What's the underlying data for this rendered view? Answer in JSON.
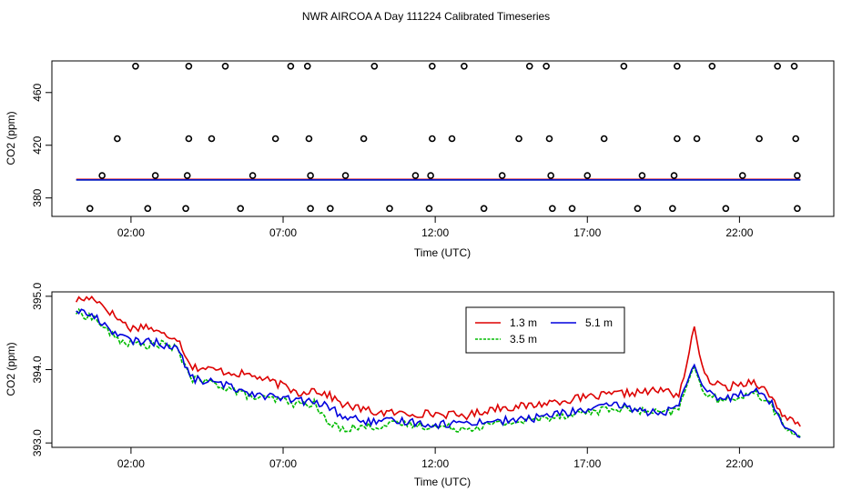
{
  "title": "NWR AIRCOA A  Day 111224  Calibrated Timeseries",
  "chart_data": [
    {
      "type": "scatter",
      "name": "top-panel",
      "xlabel": "Time (UTC)",
      "ylabel": "CO2 (ppm)",
      "xlim": [
        -0.6,
        25.1
      ],
      "ylim": [
        366,
        484
      ],
      "x_tick_values": [
        2,
        7,
        12,
        17,
        22
      ],
      "x_tick_labels": [
        "02:00",
        "07:00",
        "12:00",
        "17:00",
        "22:00"
      ],
      "y_tick_values": [
        380,
        420,
        460
      ],
      "y_tick_labels": [
        "380",
        "420",
        "460"
      ],
      "levels": [
        372,
        397,
        425,
        480
      ],
      "points_x": {
        "480": [
          2.15,
          3.9,
          5.1,
          7.25,
          7.8,
          10.0,
          11.9,
          12.95,
          15.1,
          15.65,
          18.2,
          19.95,
          21.1,
          23.25,
          23.8
        ],
        "425": [
          1.55,
          3.9,
          4.65,
          6.75,
          7.85,
          9.65,
          11.9,
          12.55,
          14.75,
          15.75,
          17.55,
          19.95,
          20.6,
          22.65,
          23.85
        ],
        "397": [
          1.05,
          2.8,
          3.85,
          6.0,
          7.9,
          9.05,
          11.35,
          11.85,
          14.2,
          15.8,
          17.0,
          18.8,
          19.85,
          22.1,
          23.9
        ],
        "372": [
          0.65,
          2.55,
          3.8,
          5.6,
          7.9,
          8.55,
          10.5,
          11.8,
          13.6,
          15.85,
          16.5,
          18.65,
          19.8,
          21.55,
          23.9
        ]
      },
      "series": [
        {
          "name": "1.3 m",
          "color": "#dd0000",
          "mean": 394.1
        },
        {
          "name": "3.5 m",
          "color": "#00bb00",
          "mean": 393.7
        },
        {
          "name": "5.1 m",
          "color": "#0000dd",
          "mean": 393.7
        }
      ]
    },
    {
      "type": "line",
      "name": "bottom-panel",
      "xlabel": "Time (UTC)",
      "ylabel": "CO2 (ppm)",
      "xlim": [
        -0.6,
        25.1
      ],
      "ylim": [
        392.94,
        395.06
      ],
      "x_tick_values": [
        2,
        7,
        12,
        17,
        22
      ],
      "x_tick_labels": [
        "02:00",
        "07:00",
        "12:00",
        "17:00",
        "22:00"
      ],
      "y_tick_values": [
        393.0,
        394.0,
        395.0
      ],
      "y_tick_labels": [
        "393.0",
        "394.0",
        "395.0"
      ],
      "legend": {
        "position": "top-center",
        "entries": [
          "1.3 m",
          "3.5 m",
          "5.1 m"
        ]
      },
      "series": [
        {
          "name": "1.3 m",
          "color": "#dd0000",
          "x": [
            0.2,
            0.8,
            1.5,
            2.0,
            2.5,
            3.0,
            3.5,
            4.0,
            5.0,
            6.0,
            7.0,
            7.5,
            8.0,
            8.5,
            9.0,
            10.0,
            11.0,
            12.0,
            13.0,
            14.0,
            15.0,
            16.0,
            17.0,
            18.0,
            19.0,
            19.5,
            20.0,
            20.3,
            20.5,
            20.8,
            21.0,
            21.5,
            22.0,
            22.5,
            23.0,
            23.5,
            24.0
          ],
          "y": [
            394.95,
            394.98,
            394.72,
            394.56,
            394.6,
            394.48,
            394.45,
            394.04,
            393.98,
            393.92,
            393.78,
            393.68,
            393.73,
            393.65,
            393.52,
            393.42,
            393.4,
            393.4,
            393.37,
            393.48,
            393.5,
            393.57,
            393.62,
            393.67,
            393.7,
            393.72,
            393.65,
            394.12,
            394.62,
            393.95,
            393.85,
            393.75,
            393.8,
            393.85,
            393.65,
            393.35,
            393.22
          ]
        },
        {
          "name": "3.5 m",
          "color": "#00bb00",
          "x": [
            0.2,
            0.8,
            1.5,
            2.0,
            2.5,
            3.0,
            3.5,
            4.0,
            5.0,
            6.0,
            7.0,
            7.5,
            8.0,
            8.5,
            9.0,
            10.0,
            11.0,
            12.0,
            13.0,
            14.0,
            15.0,
            16.0,
            17.0,
            18.0,
            19.0,
            19.5,
            20.0,
            20.3,
            20.5,
            20.8,
            21.0,
            21.5,
            22.0,
            22.5,
            23.0,
            23.5,
            24.0
          ],
          "y": [
            394.78,
            394.7,
            394.42,
            394.35,
            394.33,
            394.35,
            394.28,
            393.88,
            393.78,
            393.62,
            393.58,
            393.52,
            393.55,
            393.25,
            393.2,
            393.23,
            393.26,
            393.22,
            393.2,
            393.26,
            393.3,
            393.37,
            393.42,
            393.47,
            393.42,
            393.4,
            393.45,
            393.82,
            394.05,
            393.72,
            393.65,
            393.55,
            393.65,
            393.68,
            393.55,
            393.2,
            393.1
          ]
        },
        {
          "name": "5.1 m",
          "color": "#0000dd",
          "x": [
            0.2,
            0.8,
            1.5,
            2.0,
            2.5,
            3.0,
            3.5,
            4.0,
            5.0,
            6.0,
            7.0,
            7.5,
            8.0,
            8.5,
            9.0,
            10.0,
            11.0,
            12.0,
            13.0,
            14.0,
            15.0,
            16.0,
            17.0,
            18.0,
            19.0,
            19.5,
            20.0,
            20.3,
            20.5,
            20.8,
            21.0,
            21.5,
            22.0,
            22.5,
            23.0,
            23.5,
            24.0
          ],
          "y": [
            394.82,
            394.72,
            394.5,
            394.38,
            394.4,
            394.35,
            394.3,
            393.88,
            393.8,
            393.68,
            393.6,
            393.58,
            393.55,
            393.5,
            393.35,
            393.28,
            393.3,
            393.25,
            393.28,
            393.3,
            393.32,
            393.4,
            393.45,
            393.52,
            393.42,
            393.42,
            393.48,
            393.85,
            394.08,
            393.75,
            393.68,
            393.58,
            393.68,
            393.72,
            393.58,
            393.23,
            393.12
          ]
        }
      ]
    }
  ]
}
